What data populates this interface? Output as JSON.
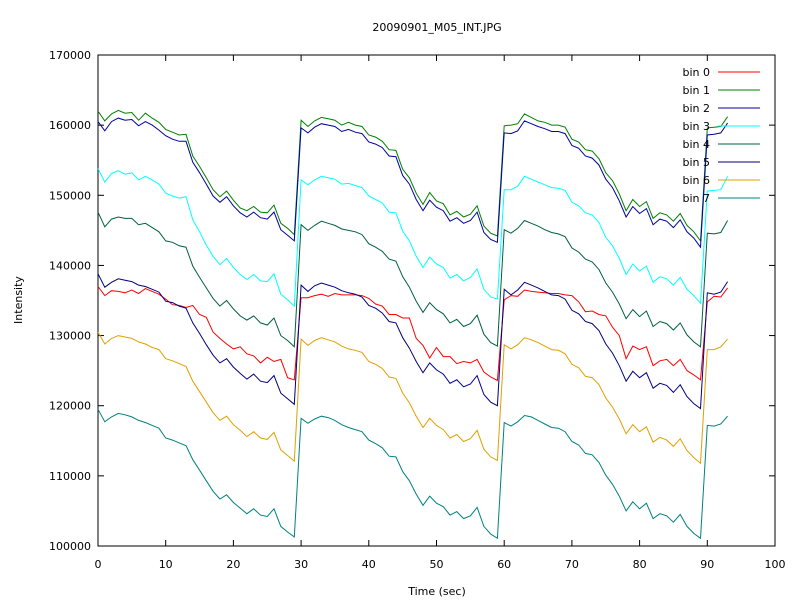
{
  "chart_data": {
    "type": "line",
    "title": "20090901_M05_INT.JPG",
    "xlabel": "Time (sec)",
    "ylabel": "Intensity",
    "xlim": [
      0,
      100
    ],
    "ylim": [
      100000,
      170000
    ],
    "xticks": [
      0,
      10,
      20,
      30,
      40,
      50,
      60,
      70,
      80,
      90,
      100
    ],
    "yticks": [
      100000,
      110000,
      120000,
      130000,
      140000,
      150000,
      160000,
      170000
    ],
    "grid": false,
    "legend_position": "top-right",
    "x": [
      0,
      1,
      2,
      3,
      4,
      5,
      6,
      7,
      8,
      9,
      10,
      11,
      12,
      13,
      14,
      15,
      16,
      17,
      18,
      19,
      20,
      21,
      22,
      23,
      24,
      25,
      26,
      27,
      28,
      29,
      30,
      31,
      32,
      33,
      34,
      35,
      36,
      37,
      38,
      39,
      40,
      41,
      42,
      43,
      44,
      45,
      46,
      47,
      48,
      49,
      50,
      51,
      52,
      53,
      54,
      55,
      56,
      57,
      58,
      59,
      60,
      61,
      62,
      63,
      64,
      65,
      66,
      67,
      68,
      69,
      70,
      71,
      72,
      73,
      74,
      75,
      76,
      77,
      78,
      79,
      80,
      81,
      82,
      83,
      84,
      85,
      86,
      87,
      88,
      89,
      90,
      91,
      92,
      93
    ],
    "series": [
      {
        "name": "bin 0",
        "color": "#ff0000",
        "values": [
          137000,
          135700,
          136400,
          136300,
          136100,
          136500,
          136000,
          136700,
          136300,
          135900,
          135200,
          134400,
          134300,
          134000,
          134300,
          133000,
          132600,
          130500,
          129600,
          128800,
          128100,
          128400,
          127400,
          127100,
          126100,
          126900,
          126300,
          126600,
          124000,
          123700,
          135400,
          135400,
          135700,
          135900,
          135600,
          136000,
          135800,
          135800,
          135800,
          135700,
          135300,
          134500,
          134200,
          133000,
          133000,
          132500,
          132500,
          129600,
          128600,
          126800,
          128300,
          127000,
          127000,
          126000,
          126300,
          126100,
          126600,
          124800,
          124100,
          123600,
          135100,
          135700,
          135600,
          136500,
          136300,
          136200,
          136100,
          136000,
          136000,
          135800,
          135700,
          134800,
          133400,
          133500,
          133000,
          132800,
          131200,
          130000,
          126700,
          128500,
          128000,
          128400,
          125700,
          126400,
          126600,
          125700,
          126600,
          125000,
          124400,
          123700,
          134800,
          135600,
          135500,
          136800
        ]
      },
      {
        "name": "bin 1",
        "color": "#008000",
        "values": [
          162000,
          160600,
          161600,
          162100,
          161700,
          161800,
          160700,
          161700,
          161000,
          160400,
          159400,
          159000,
          158600,
          158700,
          155600,
          154100,
          152500,
          150800,
          149800,
          150600,
          149300,
          148200,
          147800,
          148400,
          147600,
          147500,
          148600,
          146000,
          145300,
          144400,
          160700,
          159800,
          160600,
          161100,
          160900,
          160700,
          160000,
          160400,
          160000,
          159800,
          158600,
          158300,
          157700,
          156500,
          156400,
          153700,
          152500,
          150300,
          148700,
          150400,
          149200,
          148800,
          147200,
          147700,
          146900,
          147300,
          148500,
          145600,
          144600,
          144200,
          159900,
          160000,
          160200,
          161600,
          161100,
          160600,
          160400,
          160000,
          160000,
          159700,
          158000,
          157600,
          156500,
          156300,
          155200,
          153200,
          152100,
          150200,
          147800,
          149400,
          148400,
          149100,
          146700,
          147500,
          147200,
          146300,
          147400,
          145700,
          144800,
          143500,
          159600,
          159700,
          159800,
          161200
        ]
      },
      {
        "name": "bin 2",
        "color": "#0000a0",
        "values": [
          160500,
          159200,
          160500,
          161000,
          160700,
          160800,
          159900,
          160500,
          160000,
          159300,
          158500,
          158000,
          157700,
          157700,
          154700,
          153200,
          151600,
          149900,
          149000,
          149800,
          148500,
          147500,
          146900,
          147600,
          146800,
          146600,
          147600,
          145100,
          144300,
          143500,
          159600,
          158900,
          159700,
          160200,
          160000,
          159800,
          159100,
          159400,
          159000,
          158800,
          157600,
          157300,
          156800,
          155600,
          155500,
          152800,
          151600,
          149400,
          147800,
          149300,
          148300,
          147800,
          146300,
          146800,
          146000,
          146400,
          147600,
          144700,
          143700,
          143300,
          158900,
          158800,
          159200,
          160600,
          160200,
          159800,
          159500,
          159100,
          159100,
          158800,
          157100,
          156700,
          155600,
          155300,
          154300,
          152300,
          151100,
          149200,
          146900,
          148400,
          147400,
          148100,
          145800,
          146600,
          146300,
          145400,
          146500,
          144800,
          143900,
          142600,
          158600,
          158700,
          158900,
          160300
        ]
      },
      {
        "name": "bin 3",
        "color": "#00ffff",
        "values": [
          153800,
          151900,
          153100,
          153500,
          153000,
          153200,
          152200,
          152700,
          152200,
          151600,
          150300,
          149900,
          149600,
          149800,
          146500,
          144800,
          142900,
          141300,
          140100,
          141000,
          139700,
          138700,
          138000,
          138700,
          137800,
          137700,
          138800,
          135900,
          135100,
          134200,
          152200,
          151500,
          152200,
          152700,
          152500,
          152300,
          151600,
          151700,
          151400,
          151100,
          149900,
          149400,
          148900,
          147600,
          147500,
          144900,
          143500,
          141300,
          139700,
          141200,
          140200,
          139700,
          138200,
          138700,
          137800,
          138300,
          139500,
          136600,
          135500,
          135200,
          150800,
          150800,
          151300,
          152700,
          152300,
          151900,
          151500,
          151100,
          151000,
          150700,
          149000,
          148500,
          147500,
          147200,
          146100,
          144000,
          142800,
          141000,
          138700,
          140200,
          139200,
          139900,
          137600,
          138400,
          138100,
          137200,
          138300,
          136600,
          135700,
          134600,
          150600,
          150700,
          150800,
          152700
        ]
      },
      {
        "name": "bin 4",
        "color": "#006040",
        "values": [
          147600,
          145500,
          146600,
          146900,
          146700,
          146700,
          145800,
          146000,
          145400,
          144800,
          143500,
          143300,
          142800,
          142600,
          139900,
          138300,
          136800,
          135300,
          134200,
          135000,
          133800,
          132800,
          132200,
          132800,
          131800,
          131500,
          132500,
          130000,
          129300,
          128400,
          145800,
          145000,
          145700,
          146300,
          146000,
          145700,
          145200,
          145000,
          144800,
          144400,
          143100,
          142600,
          142000,
          140900,
          140600,
          138400,
          136900,
          134900,
          133300,
          134700,
          133700,
          133100,
          131800,
          132300,
          131300,
          131700,
          132900,
          130200,
          129000,
          128500,
          145100,
          144600,
          145300,
          146400,
          146000,
          145600,
          145100,
          144700,
          144500,
          144100,
          142500,
          141900,
          140900,
          140500,
          139400,
          137500,
          136200,
          134500,
          132400,
          133700,
          132700,
          133500,
          131300,
          132000,
          131700,
          130800,
          131800,
          130100,
          129100,
          128400,
          144600,
          144500,
          144700,
          146400
        ]
      },
      {
        "name": "bin 5",
        "color": "#000080",
        "values": [
          138800,
          136900,
          137600,
          138100,
          137900,
          137700,
          137200,
          137000,
          136600,
          136200,
          134900,
          134700,
          134200,
          133900,
          131800,
          130300,
          128700,
          127200,
          126100,
          126700,
          125500,
          124600,
          123800,
          124500,
          123500,
          123300,
          124300,
          121800,
          121000,
          120200,
          137200,
          136300,
          137100,
          137500,
          137200,
          136900,
          136400,
          136100,
          135900,
          135500,
          134300,
          133900,
          133200,
          132000,
          131800,
          129700,
          128200,
          126300,
          124700,
          126100,
          125100,
          124500,
          123200,
          123700,
          122700,
          123100,
          124300,
          121600,
          120500,
          120000,
          136600,
          135800,
          136500,
          137600,
          137200,
          136800,
          136300,
          135800,
          135700,
          135200,
          133600,
          133100,
          132000,
          131700,
          130700,
          128800,
          127500,
          125700,
          123500,
          124900,
          124000,
          124700,
          122500,
          123200,
          122900,
          121900,
          123000,
          121300,
          120300,
          119600,
          136100,
          135900,
          136200,
          137700
        ]
      },
      {
        "name": "bin 6",
        "color": "#e0a000",
        "values": [
          130500,
          128800,
          129600,
          130000,
          129800,
          129600,
          129100,
          128800,
          128300,
          128000,
          126700,
          126400,
          126000,
          125600,
          123500,
          122000,
          120500,
          119000,
          117900,
          118500,
          117300,
          116500,
          115600,
          116300,
          115400,
          115200,
          116200,
          113700,
          112900,
          112100,
          129500,
          128600,
          129300,
          129700,
          129400,
          129100,
          128500,
          128100,
          127900,
          127600,
          126300,
          125900,
          125300,
          124100,
          123900,
          121800,
          120400,
          118500,
          116900,
          118200,
          117200,
          116600,
          115400,
          115900,
          114900,
          115300,
          116500,
          113800,
          112700,
          112200,
          128700,
          128100,
          128700,
          129700,
          129400,
          129000,
          128500,
          128000,
          127900,
          127400,
          125900,
          125400,
          124200,
          124000,
          123000,
          121100,
          119800,
          118100,
          116000,
          117300,
          116300,
          117000,
          114800,
          115500,
          115100,
          114200,
          115300,
          113600,
          112600,
          111800,
          128000,
          128000,
          128400,
          129500
        ]
      },
      {
        "name": "bin 7",
        "color": "#008080",
        "values": [
          119500,
          117700,
          118400,
          118900,
          118700,
          118400,
          117900,
          117600,
          117200,
          116800,
          115400,
          115100,
          114700,
          114300,
          112300,
          110800,
          109300,
          107800,
          106700,
          107300,
          106200,
          105400,
          104600,
          105300,
          104400,
          104200,
          105300,
          102800,
          102000,
          101300,
          118200,
          117500,
          118100,
          118500,
          118300,
          117900,
          117300,
          116900,
          116600,
          116300,
          115100,
          114600,
          114000,
          112800,
          112700,
          110600,
          109300,
          107400,
          105800,
          107100,
          106100,
          105600,
          104400,
          104900,
          103900,
          104300,
          105500,
          102800,
          101700,
          101100,
          117600,
          117100,
          117700,
          118600,
          118400,
          117900,
          117400,
          116900,
          116800,
          116300,
          114900,
          114400,
          113200,
          113000,
          111900,
          110100,
          108800,
          107100,
          105000,
          106300,
          105300,
          106100,
          103900,
          104600,
          104300,
          103400,
          104500,
          102800,
          101800,
          101100,
          117200,
          117100,
          117400,
          118500
        ]
      }
    ]
  }
}
